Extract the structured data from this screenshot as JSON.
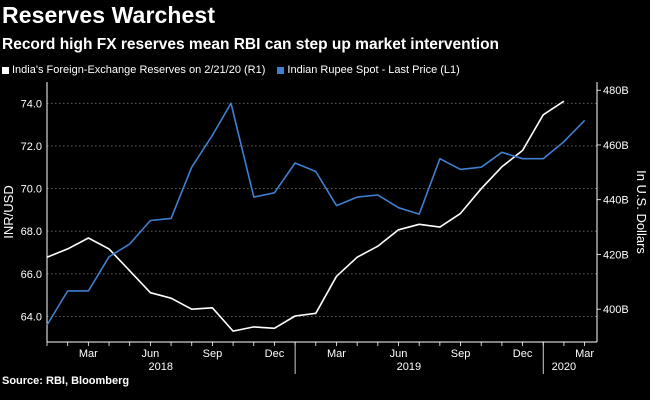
{
  "header": {
    "title": "Reserves Warchest",
    "subtitle": "Record high FX reserves mean RBI can step up market intervention"
  },
  "source": "Source: RBI, Bloomberg",
  "colors": {
    "background": "#000000",
    "reserves_line": "#ffffff",
    "rupee_line": "#3f7fd0",
    "grid": "#6e6e6e"
  },
  "chart_data": {
    "type": "line",
    "title": "Reserves Warchest",
    "subtitle": "Record high FX reserves mean RBI can step up market intervention",
    "x_axis": {
      "range": [
        "2018-01",
        "2020-03"
      ],
      "month_ticks": [
        {
          "label": "Mar",
          "month": 2.0
        },
        {
          "label": "Jun",
          "month": 5.0
        },
        {
          "label": "Sep",
          "month": 8.0
        },
        {
          "label": "Dec",
          "month": 11.0
        },
        {
          "label": "Mar",
          "month": 14.0
        },
        {
          "label": "Jun",
          "month": 17.0
        },
        {
          "label": "Sep",
          "month": 20.0
        },
        {
          "label": "Dec",
          "month": 23.0
        },
        {
          "label": "Mar",
          "month": 26.0
        }
      ],
      "year_labels": [
        {
          "label": "2018",
          "month": 5.5
        },
        {
          "label": "2019",
          "month": 17.5
        },
        {
          "label": "2020",
          "month": 25.0
        }
      ],
      "year_boundaries": [
        12.0,
        24.0
      ],
      "xlim": [
        0,
        26.6
      ]
    },
    "y_left": {
      "label": "INR/USD",
      "ylim": [
        62.8,
        75.0
      ],
      "ticks": [
        64.0,
        66.0,
        68.0,
        70.0,
        72.0,
        74.0
      ],
      "tick_labels": [
        "64.0",
        "66.0",
        "68.0",
        "70.0",
        "72.0",
        "74.0"
      ]
    },
    "y_right": {
      "label": "In U.S. Dollars",
      "ylim": [
        388,
        483
      ],
      "ticks": [
        400,
        420,
        440,
        460,
        480
      ],
      "tick_labels": [
        "400B",
        "420B",
        "440B",
        "460B",
        "480B"
      ]
    },
    "series": [
      {
        "name": "India's Foreign-Exchange Reserves on 2/21/20 (R1)",
        "axis": "right",
        "color": "#ffffff",
        "points": [
          {
            "month": 0.0,
            "value": 419
          },
          {
            "month": 1.0,
            "value": 422
          },
          {
            "month": 2.0,
            "value": 426
          },
          {
            "month": 3.0,
            "value": 422
          },
          {
            "month": 4.0,
            "value": 414
          },
          {
            "month": 5.0,
            "value": 406
          },
          {
            "month": 6.0,
            "value": 404
          },
          {
            "month": 7.0,
            "value": 400
          },
          {
            "month": 8.0,
            "value": 400.5
          },
          {
            "month": 9.0,
            "value": 392
          },
          {
            "month": 10.0,
            "value": 393.5
          },
          {
            "month": 11.0,
            "value": 393
          },
          {
            "month": 12.0,
            "value": 397.5
          },
          {
            "month": 13.0,
            "value": 398.5
          },
          {
            "month": 14.0,
            "value": 412
          },
          {
            "month": 15.0,
            "value": 419
          },
          {
            "month": 16.0,
            "value": 423
          },
          {
            "month": 17.0,
            "value": 429
          },
          {
            "month": 18.0,
            "value": 431
          },
          {
            "month": 19.0,
            "value": 430
          },
          {
            "month": 20.0,
            "value": 435
          },
          {
            "month": 21.0,
            "value": 444
          },
          {
            "month": 22.0,
            "value": 452
          },
          {
            "month": 23.0,
            "value": 458
          },
          {
            "month": 24.0,
            "value": 471
          },
          {
            "month": 25.0,
            "value": 476
          }
        ]
      },
      {
        "name": "Indian Rupee Spot - Last Price (L1)",
        "axis": "left",
        "color": "#3f7fd0",
        "points": [
          {
            "month": 0.0,
            "value": 63.6
          },
          {
            "month": 1.0,
            "value": 65.2
          },
          {
            "month": 2.0,
            "value": 65.2
          },
          {
            "month": 3.0,
            "value": 66.8
          },
          {
            "month": 4.0,
            "value": 67.4
          },
          {
            "month": 5.0,
            "value": 68.5
          },
          {
            "month": 6.0,
            "value": 68.6
          },
          {
            "month": 7.0,
            "value": 71.0
          },
          {
            "month": 8.0,
            "value": 72.5
          },
          {
            "month": 8.9,
            "value": 74.0
          },
          {
            "month": 10.0,
            "value": 69.6
          },
          {
            "month": 11.0,
            "value": 69.8
          },
          {
            "month": 12.0,
            "value": 71.2
          },
          {
            "month": 13.0,
            "value": 70.8
          },
          {
            "month": 14.0,
            "value": 69.2
          },
          {
            "month": 15.0,
            "value": 69.6
          },
          {
            "month": 16.0,
            "value": 69.7
          },
          {
            "month": 17.0,
            "value": 69.1
          },
          {
            "month": 18.0,
            "value": 68.8
          },
          {
            "month": 19.0,
            "value": 71.4
          },
          {
            "month": 20.0,
            "value": 70.9
          },
          {
            "month": 21.0,
            "value": 71.0
          },
          {
            "month": 22.0,
            "value": 71.7
          },
          {
            "month": 23.0,
            "value": 71.4
          },
          {
            "month": 24.0,
            "value": 71.4
          },
          {
            "month": 25.0,
            "value": 72.2
          },
          {
            "month": 26.0,
            "value": 73.2
          }
        ]
      }
    ],
    "legend": {
      "position": "top-left"
    },
    "grid": {
      "horizontal": true,
      "style": "dotted"
    }
  }
}
